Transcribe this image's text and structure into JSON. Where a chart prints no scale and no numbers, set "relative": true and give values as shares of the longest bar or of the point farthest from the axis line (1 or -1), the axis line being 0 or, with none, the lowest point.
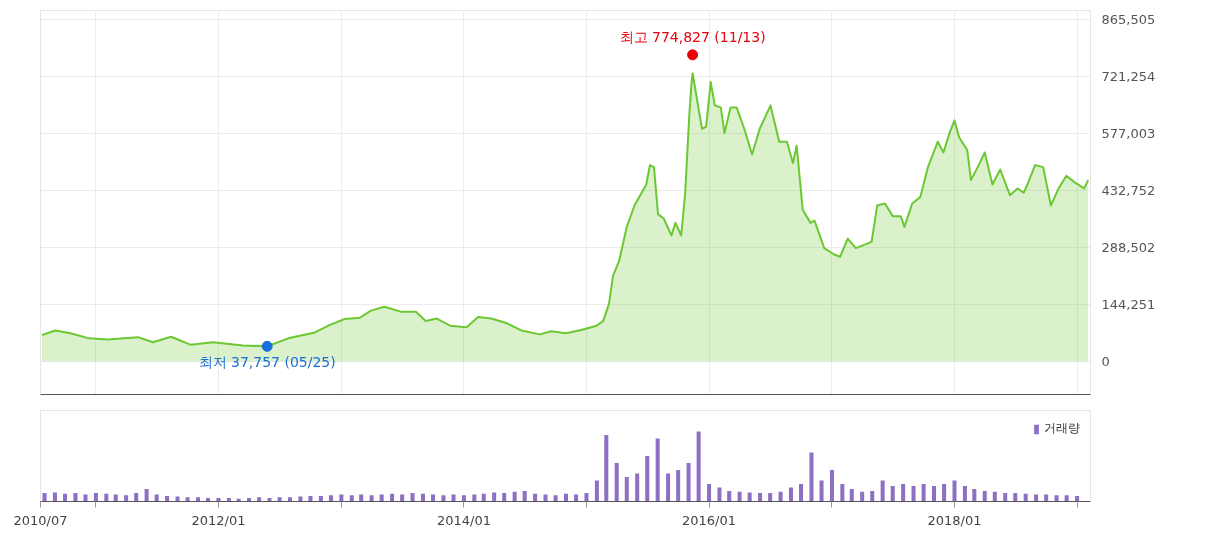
{
  "chart_data": [
    {
      "type": "area",
      "tick_labels": "y",
      "grid": true,
      "marker": "none",
      "xlim": [
        "2010-07-20",
        "2019-02-10"
      ],
      "xticks": [
        {
          "value": "2010-07-20",
          "label": null
        },
        {
          "value": "2011-01-01",
          "label": null
        },
        {
          "value": "2012-01-01",
          "label": null
        },
        {
          "value": "2013-01-01",
          "label": null
        },
        {
          "value": "2014-01-01",
          "label": null
        },
        {
          "value": "2015-01-01",
          "label": null
        },
        {
          "value": "2016-01-01",
          "label": null
        },
        {
          "value": "2017-01-01",
          "label": null
        },
        {
          "value": "2018-01-01",
          "label": null
        },
        {
          "value": "2019-01-01",
          "label": null
        }
      ],
      "ylim": [
        -84000,
        887000
      ],
      "yticks": [
        0,
        {
          "value": 144251,
          "label": "144,251"
        },
        {
          "value": 288502,
          "label": "288,502"
        },
        {
          "value": 432752,
          "label": "432,752"
        },
        {
          "value": 577003,
          "label": "577,003"
        },
        {
          "value": 721254,
          "label": "721,254"
        },
        {
          "value": 865505,
          "label": "865,505"
        }
      ],
      "annotations": [
        {
          "text": "최고 774,827 (11/13)",
          "x": "2015-11-13",
          "y": 774827
        },
        {
          "text": "최저 37,757 (05/25)",
          "x": "2012-05-25",
          "y": 37757
        }
      ],
      "series": [
        {
          "color": "#6cc832",
          "x": [
            "2010-07-24",
            "2010-09-02",
            "2010-10-17",
            "2010-12-12",
            "2011-02-06",
            "2011-05-06",
            "2011-06-20",
            "2011-08-13",
            "2011-10-09",
            "2011-12-16",
            "2012-03-14",
            "2012-05-25",
            "2012-07-27",
            "2012-10-14",
            "2012-11-28",
            "2013-01-11",
            "2013-02-25",
            "2013-03-30",
            "2013-05-09",
            "2013-06-29",
            "2013-08-11",
            "2013-09-09",
            "2013-10-12",
            "2013-11-21",
            "2014-01-09",
            "2014-02-12",
            "2014-03-23",
            "2014-05-07",
            "2014-06-21",
            "2014-08-15",
            "2014-09-18",
            "2014-11-01",
            "2014-12-16",
            "2015-01-31",
            "2015-02-20",
            "2015-03-09",
            "2015-03-21",
            "2015-04-08",
            "2015-05-01",
            "2015-05-24",
            "2015-06-10",
            "2015-06-28",
            "2015-07-09",
            "2015-07-21",
            "2015-08-02",
            "2015-08-19",
            "2015-09-11",
            "2015-09-23",
            "2015-10-10",
            "2015-10-22",
            "2015-11-03",
            "2015-11-10",
            "2015-11-13",
            "2015-12-11",
            "2015-12-23",
            "2016-01-06",
            "2016-01-18",
            "2016-02-05",
            "2016-02-16",
            "2016-03-05",
            "2016-03-23",
            "2016-04-15",
            "2016-05-08",
            "2016-05-31",
            "2016-07-02",
            "2016-07-28",
            "2016-08-20",
            "2016-09-07",
            "2016-09-18",
            "2016-10-06",
            "2016-10-29",
            "2016-11-10",
            "2016-12-09",
            "2017-01-08",
            "2017-01-25",
            "2017-02-17",
            "2017-03-13",
            "2017-04-29",
            "2017-05-16",
            "2017-06-08",
            "2017-07-01",
            "2017-07-25",
            "2017-08-05",
            "2017-08-28",
            "2017-09-21",
            "2017-10-14",
            "2017-11-12",
            "2017-11-29",
            "2017-12-17",
            "2018-01-01",
            "2018-01-15",
            "2018-02-08",
            "2018-02-19",
            "2018-03-14",
            "2018-04-01",
            "2018-04-24",
            "2018-05-17",
            "2018-06-15",
            "2018-07-08",
            "2018-07-26",
            "2018-08-06",
            "2018-08-29",
            "2018-09-22",
            "2018-10-15",
            "2018-11-07",
            "2018-11-30",
            "2018-12-24",
            "2019-01-22",
            "2019-02-03"
          ],
          "values": [
            66000,
            78000,
            71000,
            58000,
            55000,
            61000,
            48000,
            62000,
            42000,
            48000,
            40000,
            38000,
            58000,
            73000,
            92000,
            107000,
            110000,
            128000,
            138000,
            125000,
            125000,
            102000,
            108000,
            90000,
            86000,
            112000,
            108000,
            97000,
            78000,
            68000,
            76000,
            71000,
            79000,
            90000,
            102000,
            145000,
            216000,
            253000,
            340000,
            394000,
            420000,
            447000,
            496000,
            491000,
            372000,
            361000,
            318000,
            350000,
            318000,
            426000,
            620000,
            706000,
            728000,
            588000,
            593000,
            706000,
            647000,
            642000,
            577000,
            642000,
            642000,
            588000,
            523000,
            588000,
            647000,
            555000,
            555000,
            501000,
            545000,
            383000,
            350000,
            356000,
            286000,
            270000,
            264000,
            310000,
            286000,
            302000,
            394000,
            399000,
            367000,
            367000,
            340000,
            399000,
            415000,
            491000,
            555000,
            528000,
            577000,
            609000,
            566000,
            534000,
            458000,
            496000,
            528000,
            447000,
            485000,
            420000,
            437000,
            426000,
            447000,
            496000,
            491000,
            394000,
            437000,
            469000,
            453000,
            437000,
            458000
          ]
        }
      ]
    },
    {
      "type": "bar",
      "relative": true,
      "tick_labels": "x",
      "grid": false,
      "legend": "top right",
      "xlim": [
        "2010-07-20",
        "2019-02-10"
      ],
      "xticks": [
        {
          "value": "2010-07-20",
          "label": "2010/07"
        },
        {
          "value": "2011-01-01",
          "label": null
        },
        {
          "value": "2012-01-01",
          "label": "2012/01"
        },
        {
          "value": "2013-01-01",
          "label": null
        },
        {
          "value": "2014-01-01",
          "label": "2014/01"
        },
        {
          "value": "2015-01-01",
          "label": null
        },
        {
          "value": "2016-01-01",
          "label": "2016/01"
        },
        {
          "value": "2017-01-01",
          "label": null
        },
        {
          "value": "2018-01-01",
          "label": "2018/01"
        },
        {
          "value": "2019-01-01",
          "label": null
        }
      ],
      "series": [
        {
          "name": "거래량",
          "color": "#8d6fc4",
          "x": [
            "2010-08",
            "2010-09",
            "2010-10",
            "2010-11",
            "2010-12",
            "2011-01",
            "2011-02",
            "2011-03",
            "2011-04",
            "2011-05",
            "2011-06",
            "2011-07",
            "2011-08",
            "2011-09",
            "2011-10",
            "2011-11",
            "2011-12",
            "2012-01",
            "2012-02",
            "2012-03",
            "2012-04",
            "2012-05",
            "2012-06",
            "2012-07",
            "2012-08",
            "2012-09",
            "2012-10",
            "2012-11",
            "2012-12",
            "2013-01",
            "2013-02",
            "2013-03",
            "2013-04",
            "2013-05",
            "2013-06",
            "2013-07",
            "2013-08",
            "2013-09",
            "2013-10",
            "2013-11",
            "2013-12",
            "2014-01",
            "2014-02",
            "2014-03",
            "2014-04",
            "2014-05",
            "2014-06",
            "2014-07",
            "2014-08",
            "2014-09",
            "2014-10",
            "2014-11",
            "2014-12",
            "2015-01",
            "2015-02",
            "2015-03",
            "2015-04",
            "2015-05",
            "2015-06",
            "2015-07",
            "2015-08",
            "2015-09",
            "2015-10",
            "2015-11",
            "2015-12",
            "2016-01",
            "2016-02",
            "2016-03",
            "2016-04",
            "2016-05",
            "2016-06",
            "2016-07",
            "2016-08",
            "2016-09",
            "2016-10",
            "2016-11",
            "2016-12",
            "2017-01",
            "2017-02",
            "2017-03",
            "2017-04",
            "2017-05",
            "2017-06",
            "2017-07",
            "2017-08",
            "2017-09",
            "2017-10",
            "2017-11",
            "2017-12",
            "2018-01",
            "2018-02",
            "2018-03",
            "2018-04",
            "2018-05",
            "2018-06",
            "2018-07",
            "2018-08",
            "2018-09",
            "2018-10",
            "2018-11",
            "2018-12",
            "2019-01"
          ],
          "values": [
            0.12,
            0.13,
            0.11,
            0.12,
            0.1,
            0.12,
            0.11,
            0.1,
            0.09,
            0.12,
            0.18,
            0.1,
            0.08,
            0.07,
            0.06,
            0.06,
            0.05,
            0.05,
            0.05,
            0.04,
            0.05,
            0.06,
            0.05,
            0.06,
            0.06,
            0.07,
            0.08,
            0.08,
            0.09,
            0.1,
            0.09,
            0.1,
            0.09,
            0.1,
            0.11,
            0.1,
            0.12,
            0.11,
            0.1,
            0.09,
            0.1,
            0.09,
            0.1,
            0.11,
            0.13,
            0.12,
            0.14,
            0.15,
            0.11,
            0.1,
            0.09,
            0.11,
            0.1,
            0.12,
            0.3,
            0.95,
            0.55,
            0.35,
            0.4,
            0.65,
            0.9,
            0.4,
            0.45,
            0.55,
            1.0,
            0.25,
            0.2,
            0.15,
            0.14,
            0.13,
            0.12,
            0.12,
            0.14,
            0.2,
            0.25,
            0.7,
            0.3,
            0.45,
            0.25,
            0.18,
            0.14,
            0.15,
            0.3,
            0.22,
            0.25,
            0.22,
            0.25,
            0.22,
            0.25,
            0.3,
            0.22,
            0.18,
            0.15,
            0.14,
            0.12,
            0.12,
            0.11,
            0.1,
            0.1,
            0.09,
            0.09,
            0.08
          ]
        }
      ]
    }
  ]
}
